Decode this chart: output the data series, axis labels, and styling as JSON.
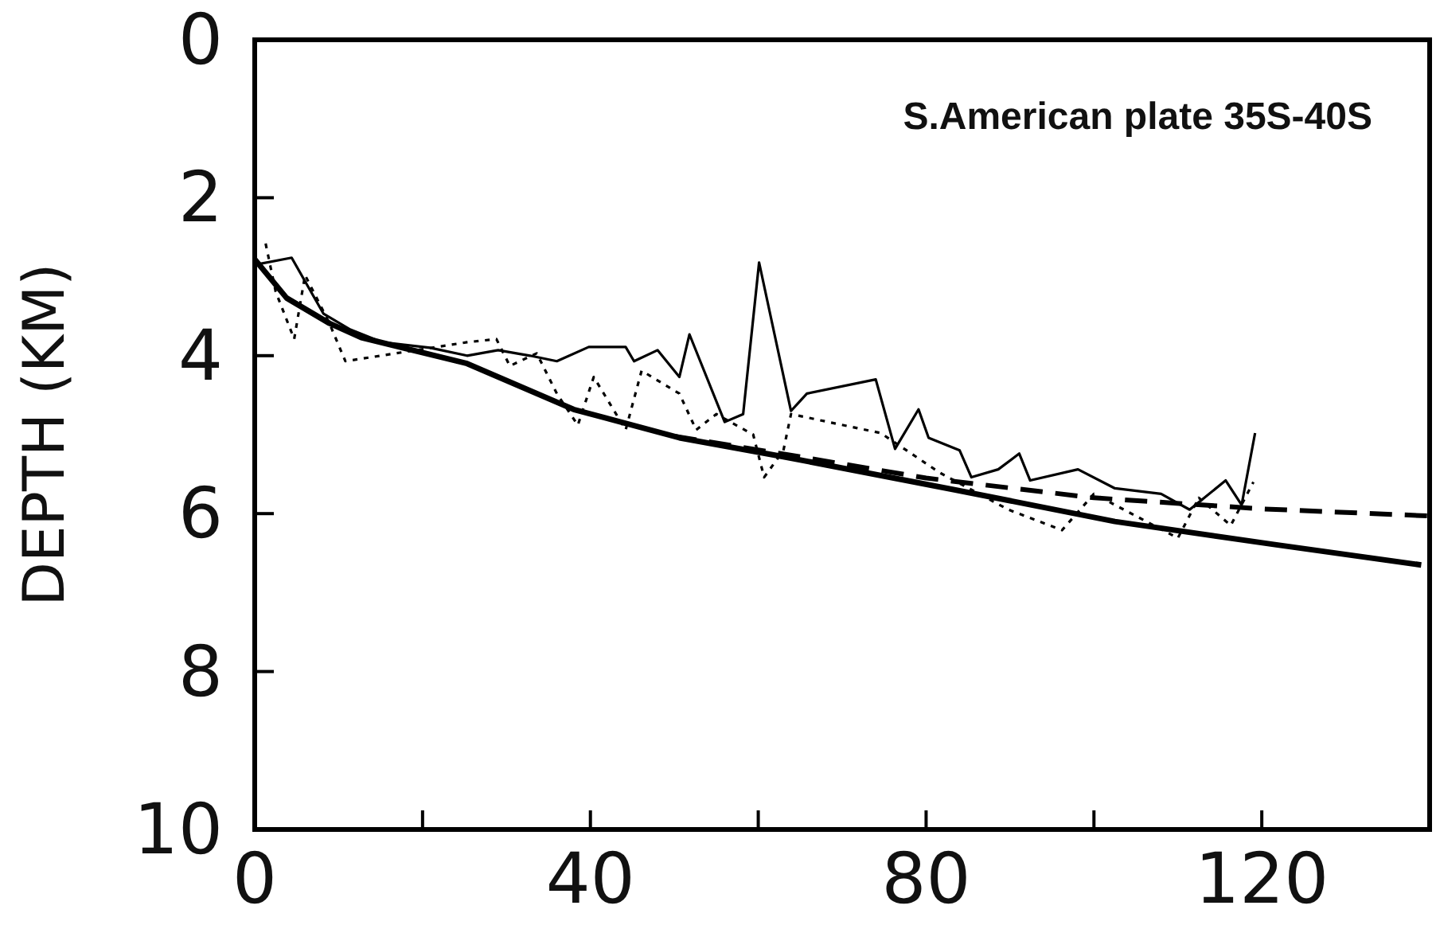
{
  "chart_data": {
    "type": "line",
    "ylabel": "DEPTH (KM)",
    "annotations": [
      "S.American plate 35S-40S"
    ],
    "xlim": [
      0,
      140
    ],
    "xticks": [
      0,
      {
        "value": 20,
        "label": null
      },
      40,
      {
        "value": 60,
        "label": null
      },
      80,
      {
        "value": 100,
        "label": null
      },
      120
    ],
    "ylim": [
      10,
      0
    ],
    "yticks": [
      0,
      2,
      4,
      6,
      8,
      10
    ],
    "grid": false,
    "legend": false,
    "marker": "none",
    "series": [
      {
        "color": "#000000",
        "line_style": "solid",
        "x": [
          0,
          3.8,
          8.9,
          12.7,
          25.3,
          38,
          50.6,
          63,
          83.5,
          102.5,
          121.4,
          139
        ],
        "values": [
          2.78,
          3.27,
          3.59,
          3.77,
          4.1,
          4.68,
          5.04,
          5.28,
          5.7,
          6.1,
          6.39,
          6.65
        ]
      },
      {
        "color": "#000000",
        "line_style": "dashed",
        "x": [
          50,
          65,
          80,
          100,
          120,
          140
        ],
        "values": [
          5.02,
          5.28,
          5.55,
          5.8,
          5.94,
          6.03
        ]
      },
      {
        "color": "#000000",
        "line_style": "solid",
        "x": [
          0,
          4.4,
          8.2,
          11.4,
          15.2,
          20.9,
          25.3,
          29,
          32.8,
          36,
          39.8,
          44.2,
          45.2,
          48,
          50.6,
          51.8,
          56,
          58.2,
          60.1,
          63.9,
          65.8,
          74,
          76.3,
          79.1,
          80.3,
          84,
          85.4,
          88.6,
          91.1,
          92.4,
          98.1,
          102.5,
          108,
          111.4,
          115.7,
          117.6,
          119.2
        ],
        "values": [
          2.85,
          2.76,
          3.47,
          3.67,
          3.83,
          3.9,
          4.0,
          3.93,
          4.0,
          4.07,
          3.89,
          3.89,
          4.07,
          3.93,
          4.27,
          3.73,
          4.84,
          4.74,
          2.82,
          4.7,
          4.48,
          4.3,
          5.18,
          4.68,
          5.04,
          5.2,
          5.54,
          5.44,
          5.24,
          5.58,
          5.44,
          5.68,
          5.75,
          5.95,
          5.58,
          5.89,
          4.98
        ]
      },
      {
        "color": "#000000",
        "line_style": "dotted",
        "x": [
          1.3,
          2.5,
          4.7,
          6,
          8.9,
          10.8,
          25.3,
          28.8,
          30.4,
          33.6,
          36,
          38.5,
          40.4,
          44.2,
          46.1,
          50.6,
          52.6,
          55,
          59.4,
          60.7,
          63,
          63.9,
          74.6,
          81.6,
          89.8,
          96.2,
          100,
          110,
          112.5,
          116.3,
          119
        ],
        "values": [
          2.58,
          3.19,
          3.79,
          2.98,
          3.59,
          4.07,
          3.83,
          3.79,
          4.13,
          3.97,
          4.48,
          4.88,
          4.27,
          4.94,
          4.19,
          4.48,
          4.94,
          4.74,
          5.0,
          5.54,
          5.2,
          4.74,
          4.98,
          5.48,
          5.95,
          6.21,
          5.75,
          6.31,
          5.8,
          6.15,
          5.6
        ]
      }
    ]
  }
}
